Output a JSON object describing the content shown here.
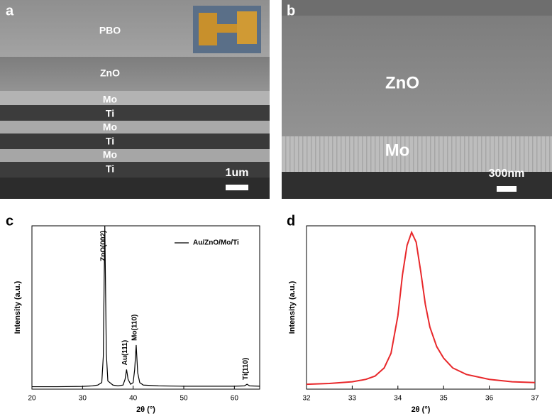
{
  "panels": {
    "a": {
      "letter": "a",
      "labels": [
        "PBO",
        "ZnO",
        "Mo",
        "Ti",
        "Mo",
        "Ti",
        "Mo",
        "Ti"
      ],
      "scale": "1um"
    },
    "b": {
      "letter": "b",
      "labels": [
        "ZnO",
        "Mo"
      ],
      "scale": "300nm"
    },
    "c": {
      "letter": "c"
    },
    "d": {
      "letter": "d"
    }
  },
  "chart_data": [
    {
      "type": "line",
      "x_label": "2θ (°)",
      "y_label": "Intensity (a.u.)",
      "x": [
        20,
        25,
        30,
        32,
        33,
        33.8,
        34.1,
        34.4,
        34.7,
        35,
        36,
        37,
        38,
        38.4,
        38.7,
        39,
        39.5,
        40,
        40.3,
        40.6,
        40.9,
        41.3,
        42,
        45,
        50,
        55,
        60,
        62,
        62.5,
        63,
        65
      ],
      "series": [
        {
          "name": "Au/ZnO/Mo/Ti",
          "color": "#000000",
          "values": [
            1.5,
            1.5,
            1.7,
            2,
            2.5,
            4,
            20,
            100,
            22,
            5,
            2.5,
            2,
            2.5,
            6,
            12,
            6,
            3,
            4,
            12,
            27,
            10,
            4,
            2.5,
            2,
            1.8,
            1.8,
            1.8,
            2,
            3,
            2,
            1.8
          ]
        }
      ],
      "annotations": [
        {
          "text": "ZnO(002)",
          "x": 34.4
        },
        {
          "text": "Au(111)",
          "x": 38.7
        },
        {
          "text": "Mo(110)",
          "x": 40.6
        },
        {
          "text": "Ti(110)",
          "x": 62.5
        }
      ],
      "xlim": [
        20,
        65
      ],
      "ylim": [
        0,
        100
      ],
      "xticks": [
        20,
        30,
        40,
        50,
        60
      ],
      "legend": "upper-right"
    },
    {
      "type": "line",
      "x_label": "2θ (°)",
      "y_label": "Intensity (a.u.)",
      "x": [
        32,
        32.5,
        33,
        33.3,
        33.5,
        33.7,
        33.85,
        34,
        34.1,
        34.2,
        34.3,
        34.4,
        34.5,
        34.6,
        34.7,
        34.85,
        35,
        35.2,
        35.5,
        36,
        36.5,
        37
      ],
      "series": [
        {
          "name": null,
          "color": "#e8282b",
          "values": [
            3,
            3.5,
            4.5,
            6,
            8,
            13,
            22,
            45,
            70,
            88,
            96,
            90,
            72,
            52,
            38,
            26,
            19,
            13,
            9,
            6,
            4.5,
            4
          ]
        }
      ],
      "xlim": [
        32,
        37
      ],
      "ylim": [
        0,
        100
      ],
      "xticks": [
        32,
        33,
        34,
        35,
        36,
        37
      ]
    }
  ]
}
